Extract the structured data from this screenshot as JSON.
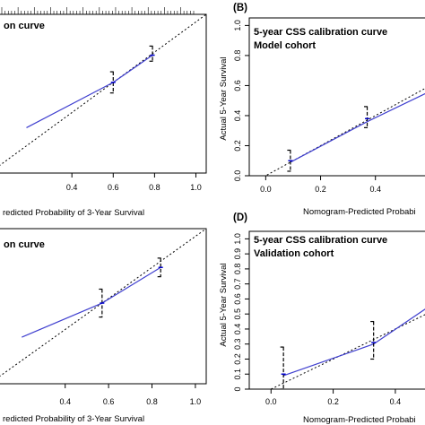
{
  "chart_data": [
    {
      "type": "line",
      "panel_label": "",
      "title_lines": [
        "on curve"
      ],
      "xlabel": "redicted Probability of 3-Year Survival",
      "ylabel": "",
      "xlim": [
        0.0,
        1.05
      ],
      "ylim": [
        0.0,
        1.05
      ],
      "x_ticks": [
        "0.4",
        "0.6",
        "0.8",
        "1.0"
      ],
      "x_tick_values": [
        0.4,
        0.6,
        0.8,
        1.0
      ],
      "y_ticks": [],
      "y_tick_values": [],
      "rug": true,
      "series": [
        {
          "role": "ideal",
          "style": "dotted",
          "color": "#000000",
          "x": [
            0.0,
            1.05
          ],
          "y": [
            0.0,
            1.05
          ]
        },
        {
          "role": "apparent",
          "style": "solid",
          "color": "#3f3fcf",
          "x": [
            0.18,
            0.6,
            0.79
          ],
          "y": [
            0.3,
            0.6,
            0.78
          ]
        },
        {
          "role": "observed",
          "style": "points",
          "color": "#0000cc",
          "x": [
            0.6,
            0.79
          ],
          "y": [
            0.6,
            0.78
          ],
          "ci_low": [
            0.53,
            0.74
          ],
          "ci_high": [
            0.67,
            0.84
          ]
        }
      ]
    },
    {
      "type": "line",
      "panel_label": "(B)",
      "title_lines": [
        "5-year CSS calibration curve",
        "Model cohort"
      ],
      "xlabel": "Nomogram-Predicted Probabi",
      "ylabel": "Actual 5-Year Survival",
      "xlim": [
        -0.06,
        0.62
      ],
      "ylim": [
        0.0,
        1.05
      ],
      "x_ticks": [
        "0.0",
        "0.2",
        "0.4"
      ],
      "x_tick_values": [
        0.0,
        0.2,
        0.4
      ],
      "y_ticks": [
        "0.0",
        "0.2",
        "0.4",
        "0.6",
        "0.8",
        "1.0"
      ],
      "y_tick_values": [
        0.0,
        0.2,
        0.4,
        0.6,
        0.8,
        1.0
      ],
      "rug": false,
      "series": [
        {
          "role": "ideal",
          "style": "dotted",
          "color": "#000000",
          "x": [
            -0.06,
            0.62
          ],
          "y": [
            -0.06,
            0.62
          ]
        },
        {
          "role": "apparent",
          "style": "solid",
          "color": "#3f3fcf",
          "x": [
            0.09,
            0.37,
            0.62
          ],
          "y": [
            0.09,
            0.36,
            0.58
          ]
        },
        {
          "role": "observed",
          "style": "points",
          "color": "#0000cc",
          "x": [
            0.09,
            0.37
          ],
          "y": [
            0.1,
            0.38
          ],
          "ci_low": [
            0.03,
            0.32
          ],
          "ci_high": [
            0.17,
            0.46
          ]
        }
      ]
    },
    {
      "type": "line",
      "panel_label": "",
      "title_lines": [
        "on curve"
      ],
      "xlabel": "redicted Probability of 3-Year Survival",
      "ylabel": "",
      "xlim": [
        0.05,
        1.05
      ],
      "ylim": [
        0.05,
        1.05
      ],
      "x_ticks": [
        "0.4",
        "0.6",
        "0.8",
        "1.0"
      ],
      "x_tick_values": [
        0.4,
        0.6,
        0.8,
        1.0
      ],
      "y_ticks": [],
      "y_tick_values": [],
      "rug": false,
      "series": [
        {
          "role": "ideal",
          "style": "dotted",
          "color": "#000000",
          "x": [
            0.05,
            1.05
          ],
          "y": [
            0.05,
            1.05
          ]
        },
        {
          "role": "apparent",
          "style": "solid",
          "color": "#3f3fcf",
          "x": [
            0.2,
            0.57,
            0.84
          ],
          "y": [
            0.35,
            0.57,
            0.8
          ]
        },
        {
          "role": "observed",
          "style": "points",
          "color": "#0000cc",
          "x": [
            0.57,
            0.84
          ],
          "y": [
            0.57,
            0.8
          ],
          "ci_low": [
            0.48,
            0.74
          ],
          "ci_high": [
            0.66,
            0.86
          ]
        }
      ]
    },
    {
      "type": "line",
      "panel_label": "(D)",
      "title_lines": [
        "5-year CSS calibration curve",
        "Validation cohort"
      ],
      "xlabel": "Nomogram-Predicted Probabi",
      "ylabel": "Actual 5-Year Survival",
      "xlim": [
        -0.07,
        0.53
      ],
      "ylim": [
        0.0,
        1.05
      ],
      "x_ticks": [
        "0.0",
        "0.2",
        "0.4"
      ],
      "x_tick_values": [
        0.0,
        0.2,
        0.4
      ],
      "y_ticks": [
        "0",
        "0.1",
        "0.2",
        "0.3",
        "0.4",
        "0.5",
        "0.6",
        "0.7",
        "0.8",
        "0.9",
        "1.0"
      ],
      "y_tick_values": [
        0.0,
        0.1,
        0.2,
        0.3,
        0.4,
        0.5,
        0.6,
        0.7,
        0.8,
        0.9,
        1.0
      ],
      "rug": false,
      "series": [
        {
          "role": "ideal",
          "style": "dotted",
          "color": "#000000",
          "x": [
            -0.07,
            0.53
          ],
          "y": [
            -0.07,
            0.53
          ]
        },
        {
          "role": "apparent",
          "style": "solid",
          "color": "#3f3fcf",
          "x": [
            0.04,
            0.33,
            0.53
          ],
          "y": [
            0.09,
            0.3,
            0.58
          ]
        },
        {
          "role": "observed",
          "style": "points",
          "color": "#0000cc",
          "x": [
            0.04,
            0.33
          ],
          "y": [
            0.1,
            0.31
          ],
          "ci_low": [
            0.0,
            0.2
          ],
          "ci_high": [
            0.28,
            0.45
          ]
        }
      ]
    }
  ]
}
